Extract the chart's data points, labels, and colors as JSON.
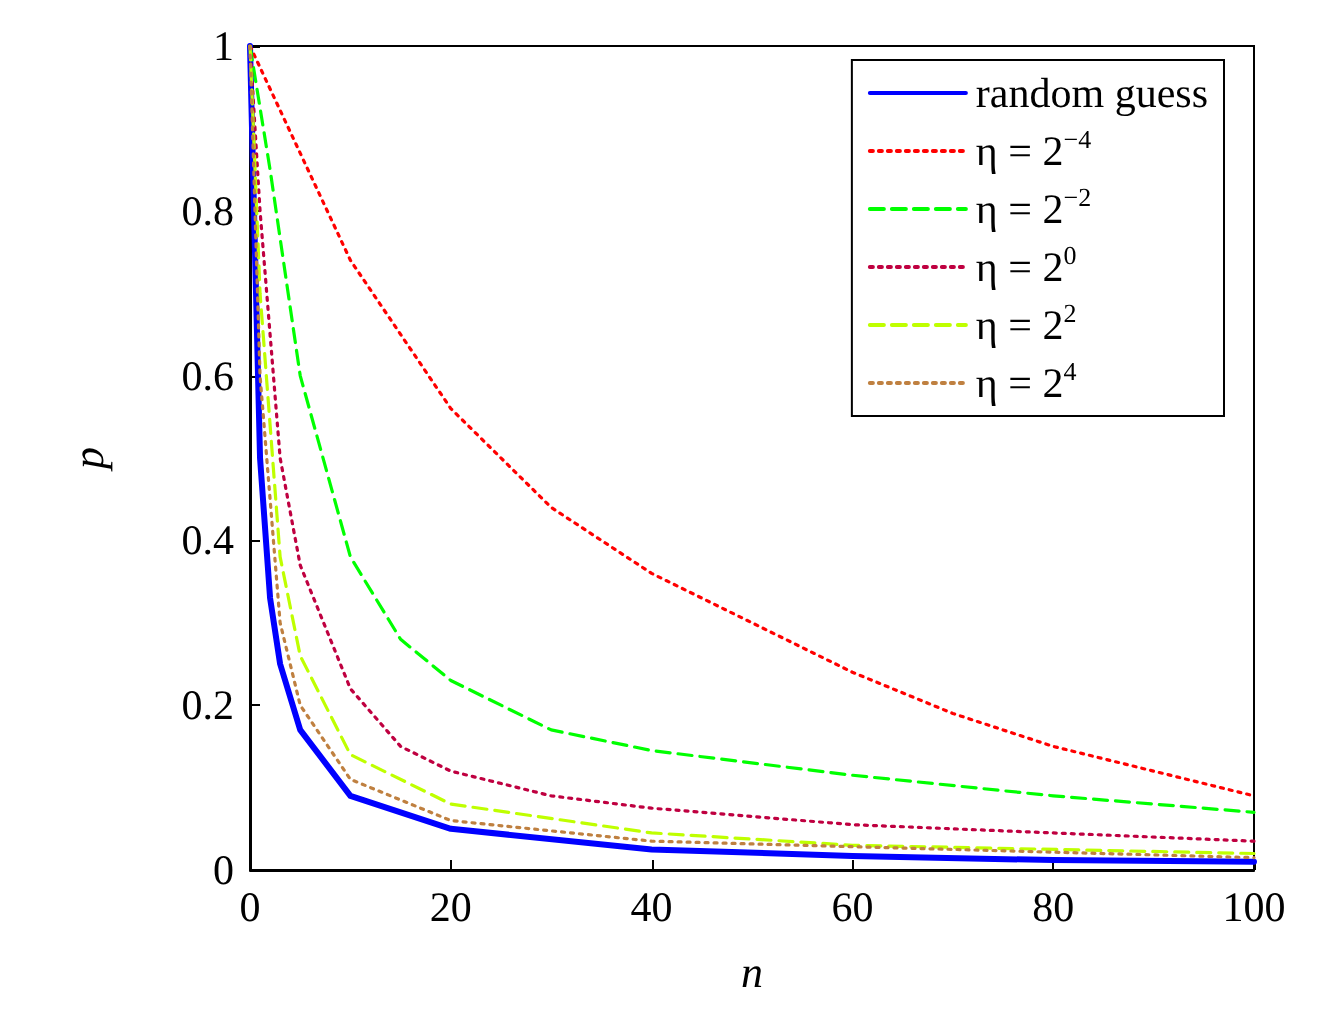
{
  "chart_data": {
    "type": "line",
    "xlabel": "n",
    "ylabel": "p",
    "xlim": [
      0,
      100
    ],
    "xticks": [
      0,
      20,
      40,
      60,
      80,
      100
    ],
    "ylim": [
      0,
      1
    ],
    "yticks": [
      0,
      0.2,
      0.4,
      0.6,
      0.8,
      1
    ],
    "legend": "top right",
    "grid": false,
    "marker": "none",
    "series": [
      {
        "name": "random guess",
        "color": "#0000ff",
        "line_style": "solid",
        "x": [
          0,
          1,
          2,
          3,
          5,
          10,
          20,
          40,
          60,
          80,
          100
        ],
        "values": [
          1,
          0.5,
          0.33,
          0.25,
          0.17,
          0.09,
          0.05,
          0.025,
          0.017,
          0.012,
          0.01
        ]
      },
      {
        "name": "η = 2$^{−4}$",
        "color": "#ff0000",
        "line_style": "dotted",
        "x": [
          0,
          5,
          10,
          20,
          30,
          40,
          50,
          60,
          70,
          80,
          90,
          100
        ],
        "values": [
          1,
          0.87,
          0.74,
          0.56,
          0.44,
          0.36,
          0.3,
          0.24,
          0.19,
          0.15,
          0.12,
          0.09
        ]
      },
      {
        "name": "η = 2$^{−2}$",
        "color": "#00ff00",
        "line_style": "dashed",
        "x": [
          0,
          2,
          5,
          10,
          15,
          20,
          30,
          40,
          60,
          80,
          100
        ],
        "values": [
          1,
          0.85,
          0.6,
          0.38,
          0.28,
          0.23,
          0.17,
          0.145,
          0.115,
          0.09,
          0.07
        ]
      },
      {
        "name": "η = 2$^{0}$",
        "color": "#bf0040",
        "line_style": "dotted",
        "x": [
          0,
          1,
          3,
          5,
          10,
          15,
          20,
          30,
          40,
          60,
          80,
          100
        ],
        "values": [
          1,
          0.8,
          0.5,
          0.37,
          0.22,
          0.15,
          0.12,
          0.09,
          0.075,
          0.055,
          0.045,
          0.035
        ]
      },
      {
        "name": "η = 2$^{2}$",
        "color": "#bfff00",
        "line_style": "dashed",
        "x": [
          0,
          1,
          3,
          5,
          10,
          20,
          40,
          60,
          100
        ],
        "values": [
          1,
          0.7,
          0.38,
          0.26,
          0.14,
          0.08,
          0.045,
          0.03,
          0.02
        ]
      },
      {
        "name": "η = 2$^{4}$",
        "color": "#bf8040",
        "line_style": "dotted",
        "x": [
          0,
          1,
          3,
          5,
          10,
          20,
          40,
          100
        ],
        "values": [
          1,
          0.6,
          0.3,
          0.2,
          0.11,
          0.06,
          0.035,
          0.015
        ]
      }
    ]
  }
}
